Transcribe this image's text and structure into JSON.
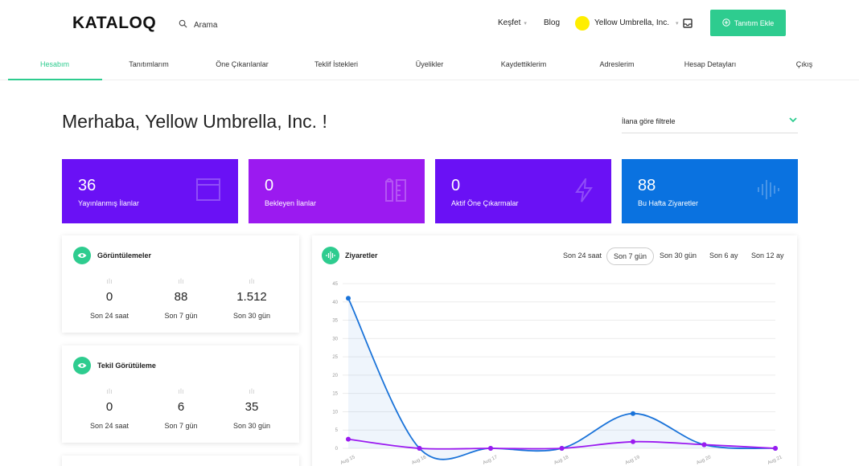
{
  "header": {
    "logo": "KATALOQ",
    "search_placeholder": "Arama",
    "discover": "Keşfet",
    "blog": "Blog",
    "account_name": "Yellow Umbrella, Inc.",
    "add_button": "Tanıtım Ekle"
  },
  "tabs": [
    "Hesabım",
    "Tanıtımlarım",
    "Öne Çıkarılanlar",
    "Teklif İstekleri",
    "Üyelikler",
    "Kaydettiklerim",
    "Adreslerim",
    "Hesap Detayları",
    "Çıkış"
  ],
  "greeting": "Merhaba, Yellow Umbrella, Inc. !",
  "filter": {
    "label": "İlana göre filtrele"
  },
  "stats": [
    {
      "value": "36",
      "label": "Yayınlanmış İlanlar",
      "color": "#6a11f5",
      "icon": "browser-window-icon"
    },
    {
      "value": "0",
      "label": "Bekleyen İlanlar",
      "color": "#9b1af0",
      "icon": "pen-ruler-icon"
    },
    {
      "value": "0",
      "label": "Aktif Öne Çıkarmalar",
      "color": "#6a11f5",
      "icon": "lightning-icon"
    },
    {
      "value": "88",
      "label": "Bu Hafta Ziyaretler",
      "color": "#0a72e0",
      "icon": "sound-wave-icon"
    }
  ],
  "views": {
    "title": "Görüntülemeler",
    "metrics": [
      {
        "value": "0",
        "label": "Son 24 saat"
      },
      {
        "value": "88",
        "label": "Son 7 gün"
      },
      {
        "value": "1.512",
        "label": "Son 30 gün"
      }
    ]
  },
  "unique_views": {
    "title": "Tekil Görütüleme",
    "metrics": [
      {
        "value": "0",
        "label": "Son 24 saat"
      },
      {
        "value": "6",
        "label": "Son 7 gün"
      },
      {
        "value": "35",
        "label": "Son 30 gün"
      }
    ]
  },
  "visits": {
    "title": "Ziyaretler",
    "ranges": [
      "Son 24 saat",
      "Son 7 gün",
      "Son 30 gün",
      "Son 6 ay",
      "Son 12 ay"
    ],
    "selected_range": "Son 7 gün"
  },
  "chart_data": {
    "type": "line",
    "title": "Ziyaretler",
    "x": [
      "Aug 15",
      "Aug 16",
      "Aug 17",
      "Aug 18",
      "Aug 19",
      "Aug 20",
      "Aug 21"
    ],
    "ylim": [
      0,
      45
    ],
    "yticks": [
      0,
      5,
      10,
      15,
      20,
      25,
      30,
      35,
      40,
      45
    ],
    "grid": true,
    "series": [
      {
        "color": "#1a73d9",
        "values": [
          41,
          0,
          0,
          0,
          9.5,
          1,
          0
        ]
      },
      {
        "color": "#9b1af0",
        "values": [
          2.5,
          0,
          0,
          0,
          1.8,
          1,
          0
        ]
      }
    ]
  }
}
